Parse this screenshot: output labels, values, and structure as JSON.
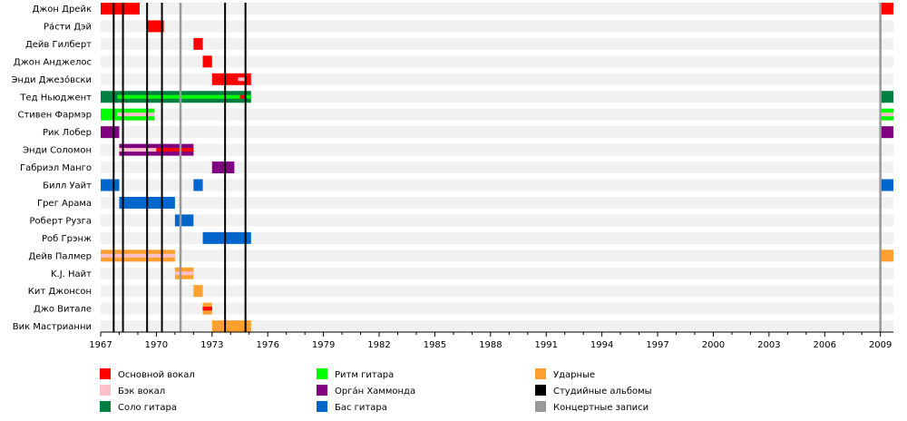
{
  "chart_data": {
    "type": "timeline",
    "x_range": [
      1967,
      2009.7
    ],
    "x_ticks": [
      1967,
      1970,
      1973,
      1976,
      1979,
      1982,
      1985,
      1988,
      1991,
      1994,
      1997,
      2000,
      2003,
      2006,
      2009
    ],
    "row_order": [
      "Джон Дрейк",
      "Ра́сти Дэй",
      "Дейв Гилберт",
      "Джон Анджелос",
      "Энди Джезо́вски",
      "Тед Ньюджент",
      "Стивен Фармэр",
      "Рик Лобер",
      "Энди Соломон",
      "Габриэл Манго",
      "Билл Уайт",
      "Грег Арама",
      "Роберт Рузга",
      "Роб Грэнж",
      "Дейв Палмер",
      "K.J. Найт",
      "Кит Джонсон",
      "Джо Витале",
      "Вик Мастрианни"
    ],
    "roles": [
      {
        "key": "lead_vocals",
        "label": "Основной вокал",
        "color": "#ff0000"
      },
      {
        "key": "backing_vocals",
        "label": "Бэк вокал",
        "color": "#ffc0cb"
      },
      {
        "key": "lead_guitar",
        "label": "Соло гитара",
        "color": "#008040"
      },
      {
        "key": "rhythm_guitar",
        "label": "Ритм гитара",
        "color": "#00ff00"
      },
      {
        "key": "organ",
        "label": "Орга́н Хаммонда",
        "color": "#800080"
      },
      {
        "key": "bass",
        "label": "Бас гитара",
        "color": "#0066cc"
      },
      {
        "key": "drums",
        "label": "Ударные",
        "color": "#ffa030"
      },
      {
        "key": "studio_albums",
        "label": "Студийные альбомы",
        "color": "#000000"
      },
      {
        "key": "live_albums",
        "label": "Концертные записи",
        "color": "#999999"
      }
    ],
    "spans": [
      {
        "member": "Джон Дрейк",
        "role": "lead_vocals",
        "start": 1967.0,
        "end": 1969.1
      },
      {
        "member": "Джон Дрейк",
        "role": "lead_vocals",
        "start": 2009.0,
        "end": 2009.7
      },
      {
        "member": "Ра́сти Дэй",
        "role": "lead_vocals",
        "start": 1969.5,
        "end": 1970.4
      },
      {
        "member": "Дейв Гилберт",
        "role": "lead_vocals",
        "start": 1972.0,
        "end": 1972.5
      },
      {
        "member": "Джон Анджелос",
        "role": "lead_vocals",
        "start": 1972.5,
        "end": 1973.0
      },
      {
        "member": "Энди Джезо́вски",
        "role": "lead_vocals",
        "start": 1973.0,
        "end": 1975.1
      },
      {
        "member": "Тед Ньюджент",
        "role": "lead_guitar",
        "start": 1967.0,
        "end": 1975.1
      },
      {
        "member": "Тед Ньюджент",
        "role": "lead_guitar",
        "start": 2009.0,
        "end": 2009.7
      },
      {
        "member": "Стивен Фармэр",
        "role": "rhythm_guitar",
        "start": 1967.0,
        "end": 1969.9
      },
      {
        "member": "Стивен Фармэр",
        "role": "rhythm_guitar",
        "start": 2009.0,
        "end": 2009.7
      },
      {
        "member": "Рик Лобер",
        "role": "organ",
        "start": 1967.0,
        "end": 1968.0
      },
      {
        "member": "Рик Лобер",
        "role": "organ",
        "start": 2009.0,
        "end": 2009.7
      },
      {
        "member": "Энди Соломон",
        "role": "organ",
        "start": 1968.0,
        "end": 1972.0
      },
      {
        "member": "Габриэл Манго",
        "role": "organ",
        "start": 1973.0,
        "end": 1974.2
      },
      {
        "member": "Билл Уайт",
        "role": "bass",
        "start": 1967.0,
        "end": 1968.0
      },
      {
        "member": "Билл Уайт",
        "role": "bass",
        "start": 1972.0,
        "end": 1972.5
      },
      {
        "member": "Билл Уайт",
        "role": "bass",
        "start": 2009.0,
        "end": 2009.7
      },
      {
        "member": "Грег Арама",
        "role": "bass",
        "start": 1968.0,
        "end": 1971.0
      },
      {
        "member": "Роберт Рузга",
        "role": "bass",
        "start": 1971.0,
        "end": 1972.0
      },
      {
        "member": "Роб Грэнж",
        "role": "bass",
        "start": 1972.5,
        "end": 1975.1
      },
      {
        "member": "Дейв Палмер",
        "role": "drums",
        "start": 1967.0,
        "end": 1971.0
      },
      {
        "member": "Дейв Палмер",
        "role": "drums",
        "start": 2009.0,
        "end": 2009.7
      },
      {
        "member": "K.J. Найт",
        "role": "drums",
        "start": 1971.0,
        "end": 1972.0
      },
      {
        "member": "Кит Джонсон",
        "role": "drums",
        "start": 1972.0,
        "end": 1972.5
      },
      {
        "member": "Джо Витале",
        "role": "drums",
        "start": 1972.5,
        "end": 1973.0
      },
      {
        "member": "Вик Мастрианни",
        "role": "drums",
        "start": 1973.0,
        "end": 1975.1
      }
    ],
    "secondary_spans": [
      {
        "member": "Энди Джезо́вски",
        "role": "backing_vocals",
        "start": 1974.4,
        "end": 1974.8
      },
      {
        "member": "Тед Ньюджент",
        "role": "rhythm_guitar",
        "start": 1967.9,
        "end": 1975.1
      },
      {
        "member": "Тед Ньюджент",
        "role": "lead_vocals",
        "start": 1974.5,
        "end": 1974.8
      },
      {
        "member": "Стивен Фармэр",
        "role": "backing_vocals",
        "start": 1967.9,
        "end": 1969.9
      },
      {
        "member": "Стивен Фармэр",
        "role": "backing_vocals",
        "start": 2009.0,
        "end": 2009.7
      },
      {
        "member": "Энди Соломон",
        "role": "backing_vocals",
        "start": 1968.0,
        "end": 1970.0
      },
      {
        "member": "Энди Соломон",
        "role": "lead_vocals",
        "start": 1970.0,
        "end": 1972.0
      },
      {
        "member": "Дейв Палмер",
        "role": "backing_vocals",
        "start": 1967.0,
        "end": 1971.0
      },
      {
        "member": "K.J. Найт",
        "role": "backing_vocals",
        "start": 1971.0,
        "end": 1972.0
      },
      {
        "member": "Джо Витале",
        "role": "organ",
        "start": 1972.5,
        "end": 1973.0
      },
      {
        "member": "Джо Витале",
        "role": "lead_vocals",
        "start": 1972.5,
        "end": 1973.0
      }
    ],
    "studio_albums": [
      1967.7,
      1968.2,
      1969.5,
      1970.3,
      1973.7,
      1974.8
    ],
    "live_albums": [
      1971.3,
      2009.0
    ],
    "legend_position": "bottom"
  }
}
